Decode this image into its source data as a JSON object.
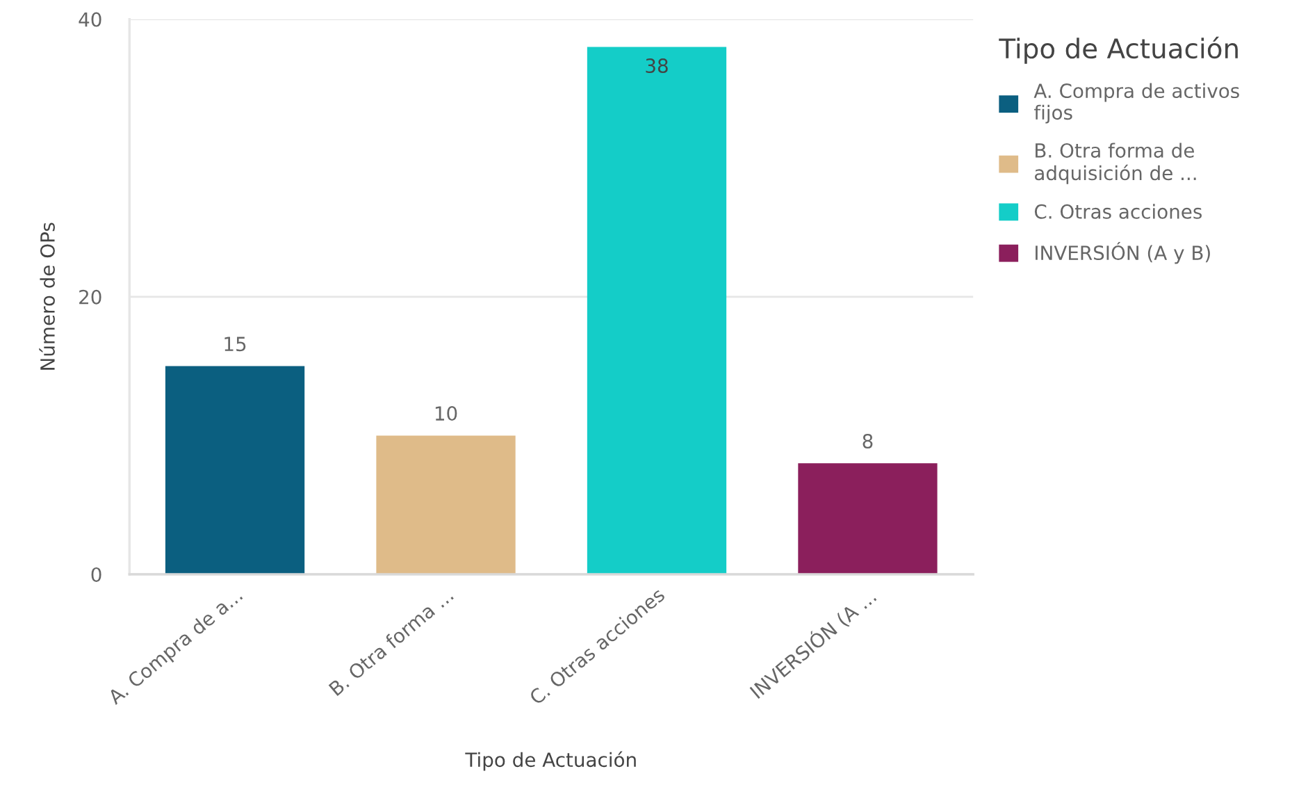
{
  "chart_data": {
    "type": "bar",
    "stacked": true,
    "categories": [
      "A. Compra de a...",
      "B. Otra forma ...",
      "C. Otras acciones",
      "INVERSIÓN (A ..."
    ],
    "series": [
      {
        "name": "A. Compra de activos fijos",
        "color": "#0b5f80",
        "values": [
          15,
          null,
          null,
          null
        ]
      },
      {
        "name": "B. Otra forma de adquisición de ...",
        "color": "#dfbb89",
        "values": [
          null,
          10,
          null,
          null
        ]
      },
      {
        "name": "C. Otras acciones",
        "color": "#14cdc8",
        "values": [
          null,
          null,
          38,
          null
        ]
      },
      {
        "name": "INVERSIÓN (A y B)",
        "color": "#8b1f5c",
        "values": [
          null,
          null,
          null,
          8
        ]
      }
    ],
    "xlabel": "Tipo de Actuación",
    "ylabel": "Número de OPs",
    "legend_title": "Tipo de Actuación",
    "ylim": [
      0,
      40
    ],
    "yticks": [
      0,
      20,
      40
    ],
    "grid": "y",
    "legend": "right",
    "data_labels": true
  }
}
